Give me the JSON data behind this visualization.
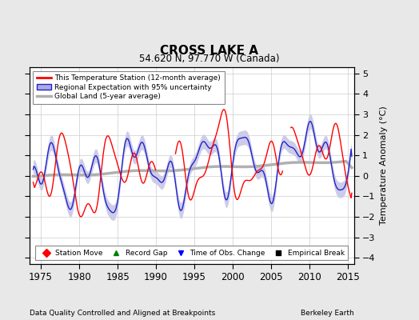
{
  "title": "CROSS LAKE A",
  "subtitle": "54.620 N, 97.770 W (Canada)",
  "xlabel_left": "Data Quality Controlled and Aligned at Breakpoints",
  "xlabel_right": "Berkeley Earth",
  "ylabel": "Temperature Anomaly (°C)",
  "xlim": [
    1973.5,
    2015.8
  ],
  "ylim": [
    -4.3,
    5.3
  ],
  "yticks": [
    -4,
    -3,
    -2,
    -1,
    0,
    1,
    2,
    3,
    4,
    5
  ],
  "xticks": [
    1975,
    1980,
    1985,
    1990,
    1995,
    2000,
    2005,
    2010,
    2015
  ],
  "background_color": "#e8e8e8",
  "plot_bg_color": "#ffffff",
  "grid_color": "#cccccc",
  "station_color": "#ff0000",
  "regional_color": "#2222cc",
  "regional_fill_color": "#aaaadd",
  "global_color": "#b0b0b0",
  "seed": 12345
}
